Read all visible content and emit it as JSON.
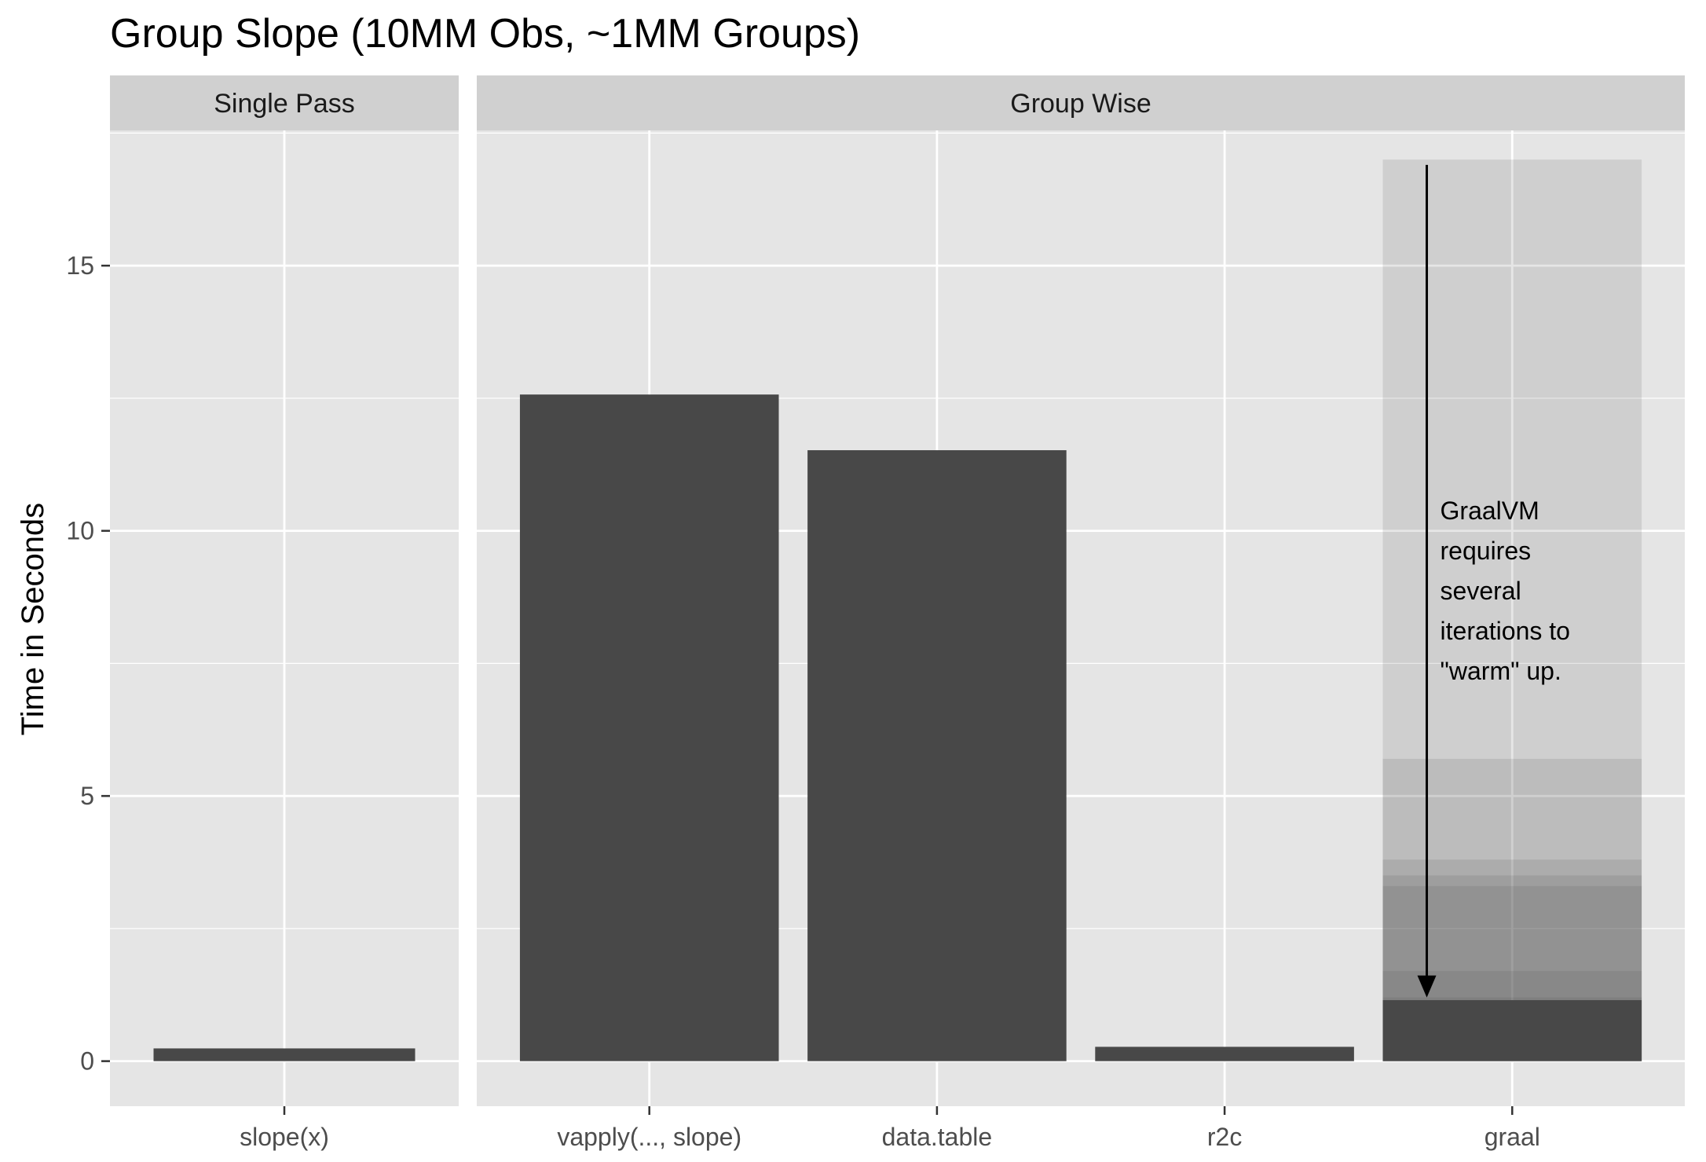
{
  "chart_data": {
    "type": "bar",
    "title": "Group Slope (10MM Obs, ~1MM Groups)",
    "xlabel": "",
    "ylabel": "Time in Seconds",
    "ylim": [
      -0.85,
      17.55
    ],
    "yticks": [
      0,
      5,
      10,
      15
    ],
    "grid": true,
    "legend": "none",
    "colors": {
      "panel_bg": "#e5e5e5",
      "strip_bg": "#d0d0d0",
      "grid": "#ffffff",
      "bar": "#484848",
      "warmup_bar": "#4d4d4d"
    },
    "panels": [
      {
        "label": "Single Pass",
        "categories": [
          "slope(x)"
        ],
        "values": [
          0.24
        ]
      },
      {
        "label": "Group Wise",
        "categories": [
          "vapply(..., slope)",
          "data.table",
          "r2c",
          "graal"
        ],
        "values": [
          12.57,
          11.52,
          0.27,
          1.15
        ]
      }
    ],
    "graal_runs": [
      17.0,
      5.7,
      3.8,
      3.5,
      3.3,
      1.7,
      1.2
    ],
    "annotation": {
      "lines": [
        "GraalVM",
        "requires",
        "several",
        "iterations to",
        "\"warm\" up."
      ],
      "arrow_from": 16.9,
      "arrow_to": 1.2
    }
  }
}
